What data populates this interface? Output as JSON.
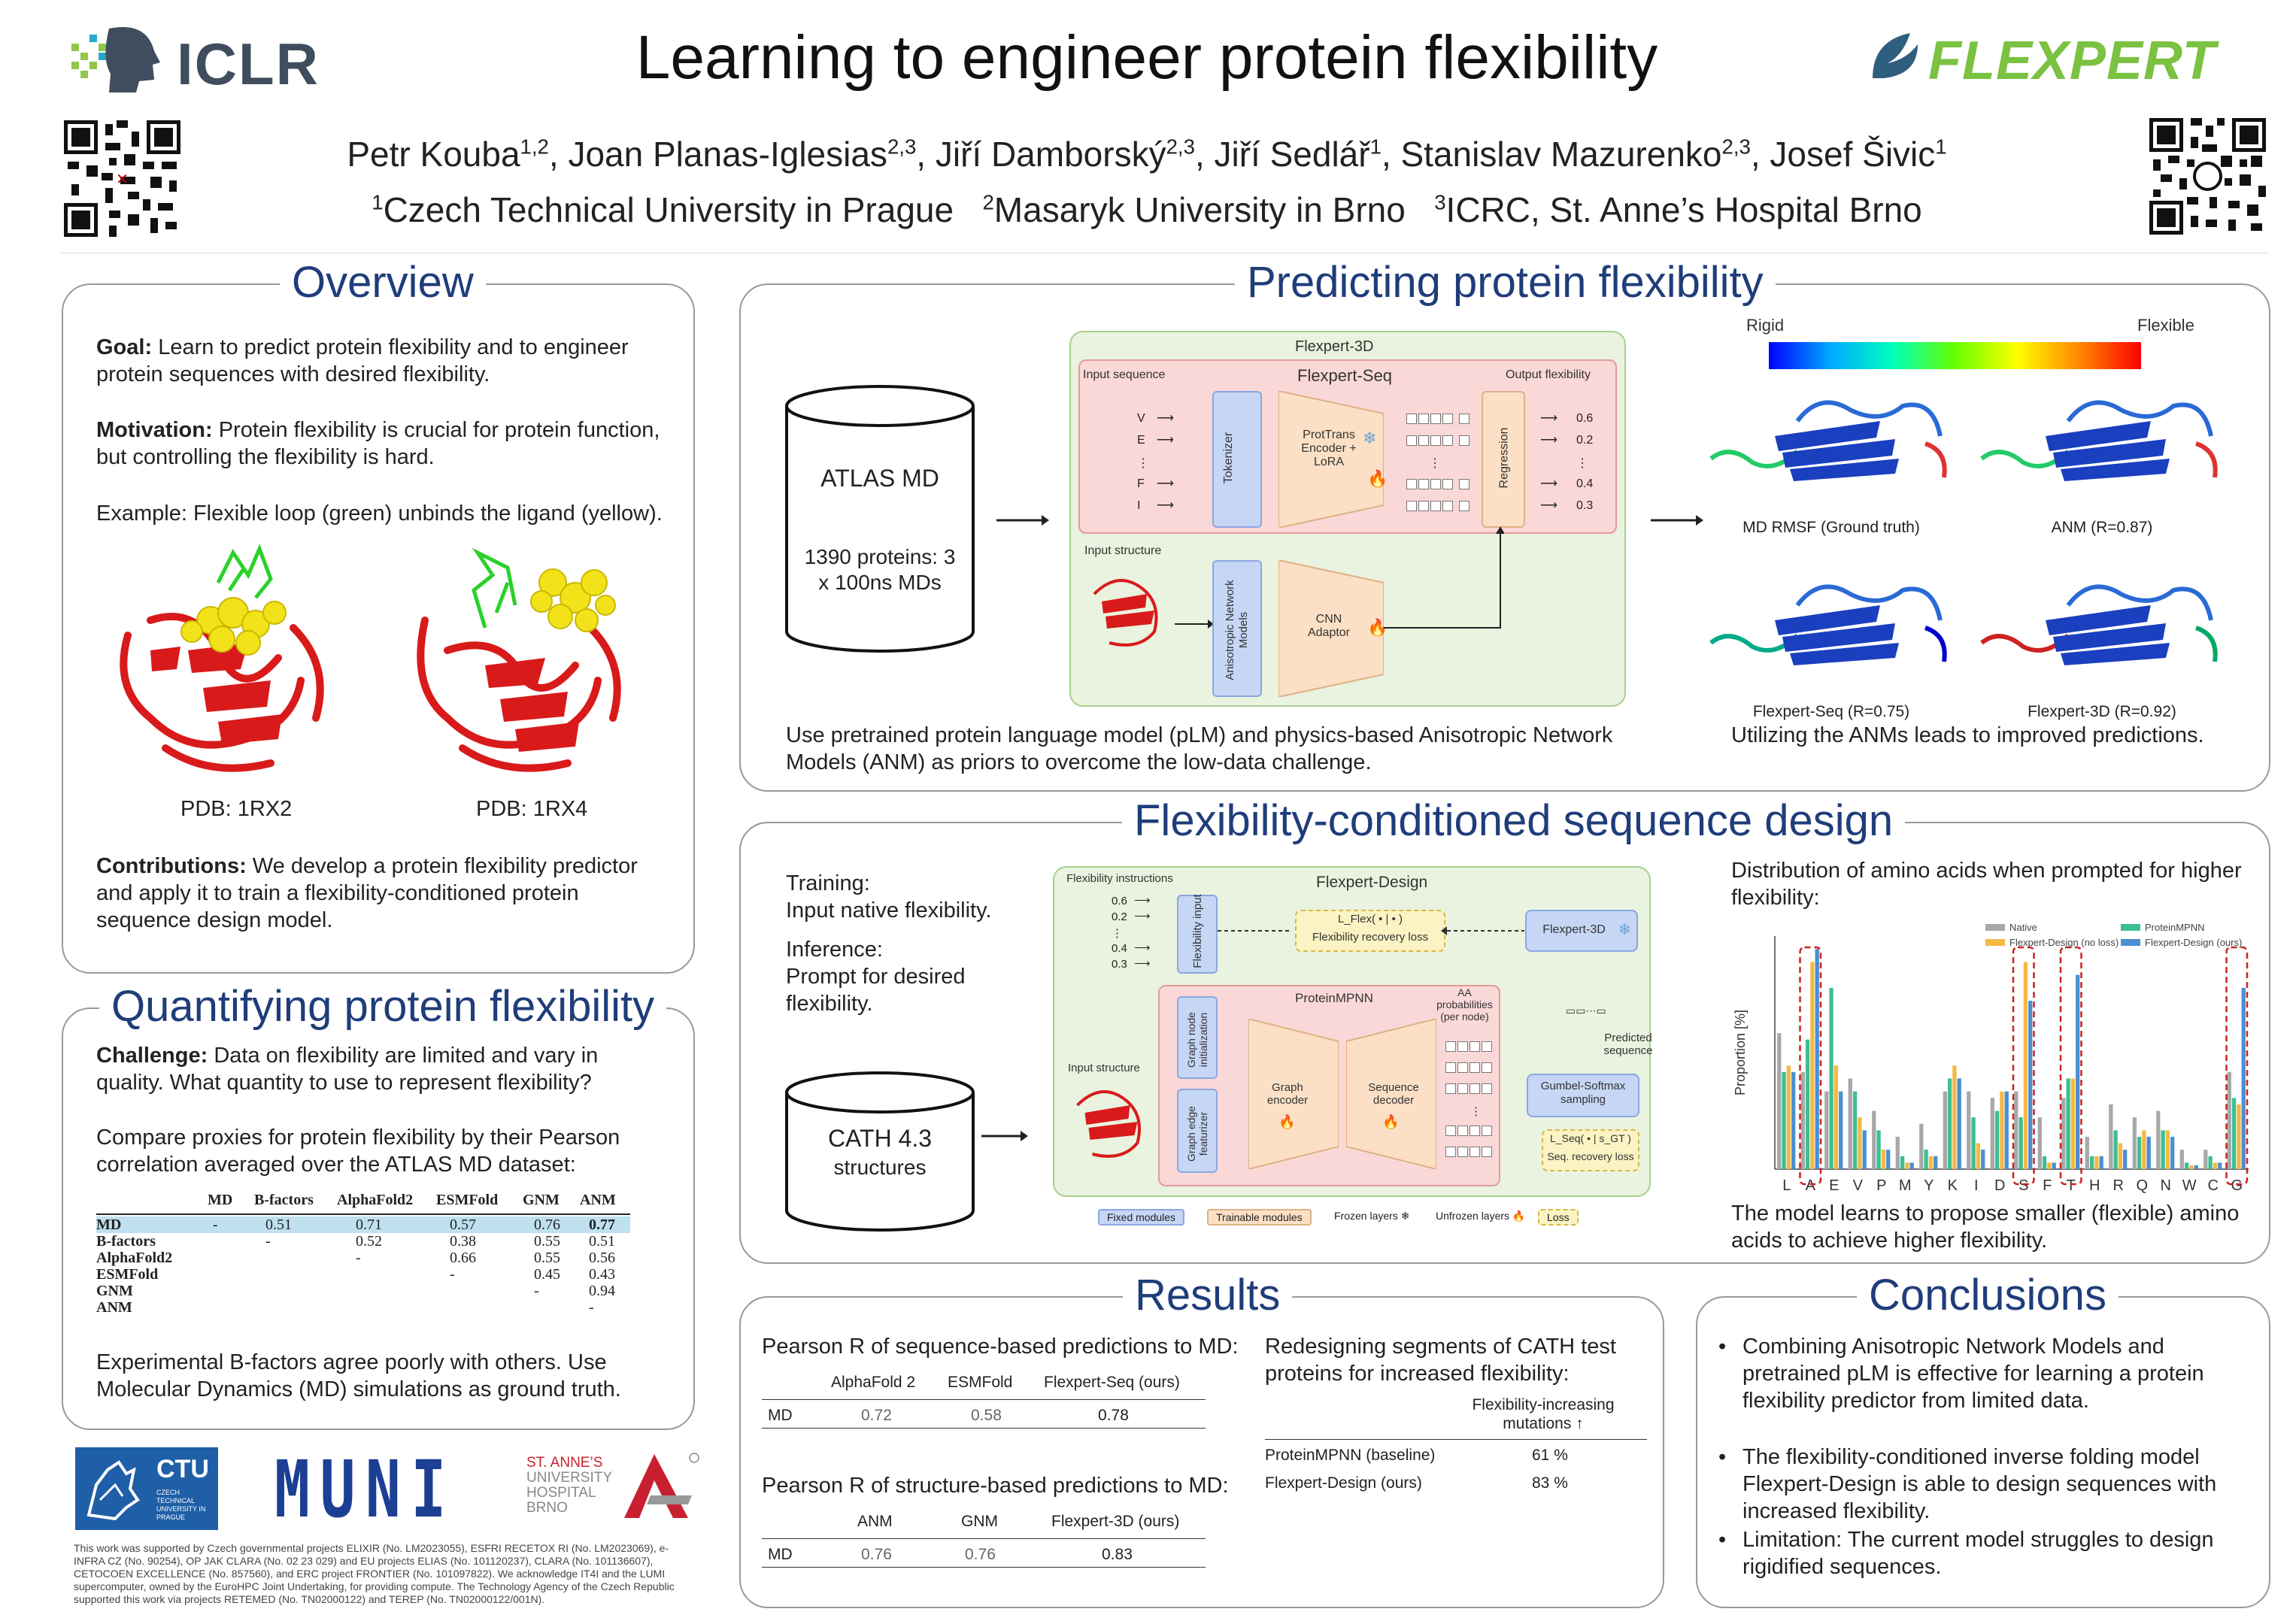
{
  "header": {
    "logo_left": "ICLR",
    "logo_right": "FLEXPERT",
    "title": "Learning to engineer protein flexibility",
    "authors": [
      {
        "name": "Petr Kouba",
        "aff": "1,2"
      },
      {
        "name": "Joan Planas-Iglesias",
        "aff": "2,3"
      },
      {
        "name": "Jiří Damborský",
        "aff": "2,3"
      },
      {
        "name": "Jiří Sedlář",
        "aff": "1"
      },
      {
        "name": "Stanislav Mazurenko",
        "aff": "2,3"
      },
      {
        "name": "Josef Šivic",
        "aff": "1"
      }
    ],
    "affiliations": [
      {
        "num": "1",
        "name": "Czech Technical University in Prague"
      },
      {
        "num": "2",
        "name": "Masaryk University in Brno"
      },
      {
        "num": "3",
        "name": "ICRC, St. Anne’s Hospital Brno"
      }
    ]
  },
  "overview": {
    "title": "Overview",
    "goal_label": "Goal:",
    "goal": "Learn to predict protein flexibility and to engineer protein sequences with desired flexibility.",
    "motivation_label": "Motivation:",
    "motivation": "Protein flexibility is crucial for protein function, but controlling the flexibility is hard.",
    "example": "Example: Flexible loop (green) unbinds the ligand (yellow).",
    "pdb1": "PDB: 1RX2",
    "pdb2": "PDB: 1RX4",
    "contrib_label": "Contributions:",
    "contrib": "We develop a protein flexibility predictor and apply it to train a flexibility-conditioned protein sequence design model."
  },
  "quantifying": {
    "title": "Quantifying protein flexibility",
    "challenge_label": "Challenge:",
    "challenge": "Data on flexibility are limited and vary in quality. What quantity to use to represent flexibility?",
    "compare": "Compare proxies for protein flexibility by their Pearson correlation averaged over the ATLAS MD dataset:",
    "headers": [
      "MD",
      "B-factors",
      "AlphaFold2",
      "ESMFold",
      "GNM",
      "ANM"
    ],
    "rows": [
      {
        "name": "MD",
        "vals": [
          "-",
          "0.51",
          "0.71",
          "0.57",
          "0.76",
          "0.77"
        ]
      },
      {
        "name": "B-factors",
        "vals": [
          "",
          "-",
          "0.52",
          "0.38",
          "0.55",
          "0.51"
        ]
      },
      {
        "name": "AlphaFold2",
        "vals": [
          "",
          "",
          "-",
          "0.66",
          "0.55",
          "0.56"
        ]
      },
      {
        "name": "ESMFold",
        "vals": [
          "",
          "",
          "",
          "-",
          "0.45",
          "0.43"
        ]
      },
      {
        "name": "GNM",
        "vals": [
          "",
          "",
          "",
          "",
          "-",
          "0.94"
        ]
      },
      {
        "name": "ANM",
        "vals": [
          "",
          "",
          "",
          "",
          "",
          "-"
        ]
      }
    ],
    "conclusion_a": "Experimental B-factors agree poorly with others.",
    "conclusion_b": "Use Molecular Dynamics (MD) simulations as ground truth."
  },
  "footer": {
    "ctu": "CTU",
    "ctu_sub": "CZECH TECHNICAL UNIVERSITY IN PRAGUE",
    "muni": "MUNI",
    "stanne": [
      "ST. ANNE’S",
      "UNIVERSITY",
      "HOSPITAL",
      "BRNO"
    ],
    "ack": "This work was supported by Czech governmental projects ELIXIR (No. LM2023055), ESFRI RECETOX RI (No. LM2023069), e-INFRA CZ (No. 90254), OP JAK CLARA (No. 02 23 029) and EU projects ELIAS (No. 101120237), CLARA (No. 101136607), CETOCOEN EXCELLENCE (No. 857560), and ERC project FRONTIER (No. 101097822). We acknowledge IT4I and the LUMI supercomputer, owned by the EuroHPC Joint Undertaking, for providing compute. The Technology Agency of the Czech Republic supported this work via projects RETEMED (No. TN02000122) and TEREP (No. TN02000122/001N)."
  },
  "predicting": {
    "title": "Predicting protein flexibility",
    "atlas": "ATLAS MD",
    "atlas_sub": "1390 proteins: 3 x 100ns MDs",
    "flexpert3d": "Flexpert-3D",
    "flexpertseq": "Flexpert-Seq",
    "input_sequence": "Input sequence",
    "output_flexibility": "Output flexibility",
    "seq_letters": [
      "V",
      "E",
      "⋮",
      "F",
      "I"
    ],
    "out_vals": [
      "0.6",
      "0.2",
      "⋮",
      "0.4",
      "0.3"
    ],
    "tokenizer": "Tokenizer",
    "encoder": "ProtTrans Encoder + LoRA",
    "regression": "Regression",
    "input_structure": "Input structure",
    "anm_models": "Anisotropic Network Models",
    "cnn": "CNN Adaptor",
    "rigid": "Rigid",
    "flexible": "Flexible",
    "structs": [
      "MD RMSF (Ground truth)",
      "ANM (R=0.87)",
      "Flexpert-Seq (R=0.75)",
      "Flexpert-3D (R=0.92)"
    ],
    "caption_left": "Use pretrained protein language model (pLM) and physics-based Anisotropic Network Models (ANM) as priors to overcome the low-data challenge.",
    "caption_right": "Utilizing the ANMs leads to improved predictions."
  },
  "design": {
    "title": "Flexibility-conditioned sequence design",
    "training_label": "Training:",
    "training": "Input native flexibility.",
    "inference_label": "Inference:",
    "inference": "Prompt for desired flexibility.",
    "cath": "CATH 4.3",
    "cath_sub": "structures",
    "flexpert_design": "Flexpert-Design",
    "flex_instructions": "Flexibility instructions",
    "flex_vals": [
      "0.6",
      "0.2",
      "⋮",
      "0.4",
      "0.3"
    ],
    "flex_input": "Flexibility input",
    "flex_loss": "Flexibility recovery loss",
    "flex_loss_sym": "L_Flex( • | • )",
    "flexpert3d": "Flexpert-3D",
    "proteinmpnn": "ProteinMPNN",
    "aa_prob": "AA probabilities (per node)",
    "node_init": "Graph node initialization",
    "edge_feat": "Graph edge featurizer",
    "graph_encoder": "Graph encoder",
    "seq_decoder": "Sequence decoder",
    "gumbel": "Gumbel-Softmax sampling",
    "predicted_seq": "Predicted sequence",
    "seq_loss": "Seq. recovery loss",
    "seq_loss_sym": "L_Seq( • | s_GT )",
    "input_structure": "Input structure",
    "legend": [
      "Fixed modules",
      "Trainable modules",
      "Frozen layers",
      "Unfrozen layers",
      "Loss"
    ],
    "dist_title": "Distribution of amino acids when prompted for higher flexibility:",
    "dist_caption": "The model learns to propose smaller (flexible) amino acids to achieve higher flexibility."
  },
  "chart_data": {
    "type": "bar",
    "categories": [
      "L",
      "A",
      "E",
      "V",
      "P",
      "M",
      "Y",
      "K",
      "I",
      "D",
      "S",
      "F",
      "T",
      "H",
      "R",
      "Q",
      "N",
      "W",
      "C",
      "G"
    ],
    "ylabel": "Proportion [%]",
    "series": [
      {
        "name": "Native",
        "color": "#a8a8a8",
        "values": [
          10.5,
          7.5,
          6,
          7,
          4.5,
          2.5,
          3.5,
          6,
          6,
          5.5,
          6,
          4,
          5.5,
          2.5,
          5,
          4,
          4.5,
          1.5,
          1.5,
          7.5
        ]
      },
      {
        "name": "ProteinMPNN",
        "color": "#3dbf93",
        "values": [
          7.5,
          10,
          14,
          6,
          3,
          1,
          1.5,
          7,
          4,
          4.5,
          4,
          1,
          7,
          1,
          3,
          2.5,
          3,
          0.5,
          1,
          5.5
        ]
      },
      {
        "name": "Flexpert-Design (no loss)",
        "color": "#f5b942",
        "values": [
          8,
          16,
          8,
          4,
          1.5,
          0.5,
          1,
          8,
          2,
          6,
          16,
          0.5,
          7,
          1,
          2,
          3,
          3,
          0.3,
          0.5,
          5
        ]
      },
      {
        "name": "Flexpert-Design (ours)",
        "color": "#4b8fd1",
        "values": [
          7.5,
          17,
          6,
          3,
          1.5,
          0.5,
          1,
          7,
          1.5,
          6,
          13,
          0.5,
          15,
          1,
          1.5,
          2.5,
          2.5,
          0.3,
          0.5,
          14
        ]
      }
    ],
    "highlighted": [
      "A",
      "S",
      "T",
      "G"
    ],
    "legend": "top-right"
  },
  "results": {
    "title": "Results",
    "seq_title": "Pearson R of sequence-based predictions to MD:",
    "seq_headers": [
      "AlphaFold 2",
      "ESMFold",
      "Flexpert-Seq (ours)"
    ],
    "seq_row": {
      "name": "MD",
      "vals": [
        "0.72",
        "0.58",
        "0.78"
      ]
    },
    "str_title": "Pearson R of structure-based predictions to MD:",
    "str_headers": [
      "ANM",
      "GNM",
      "Flexpert-3D (ours)"
    ],
    "str_row": {
      "name": "MD",
      "vals": [
        "0.76",
        "0.76",
        "0.83"
      ]
    },
    "redesign_title": "Redesigning segments of CATH test proteins for increased flexibility:",
    "redesign_header": "Flexibility-increasing mutations ↑",
    "redesign_rows": [
      {
        "name": "ProteinMPNN (baseline)",
        "val": "61 %"
      },
      {
        "name": "Flexpert-Design (ours)",
        "val": "83 %"
      }
    ]
  },
  "conclusions": {
    "title": "Conclusions",
    "items": [
      "Combining Anisotropic Network Models and pretrained pLM is effective for learning a protein flexibility predictor from limited data.",
      "The flexibility-conditioned inverse folding model Flexpert-Design is able to design sequences with increased flexibility.",
      "Limitation: The current model struggles to design rigidified sequences."
    ]
  }
}
